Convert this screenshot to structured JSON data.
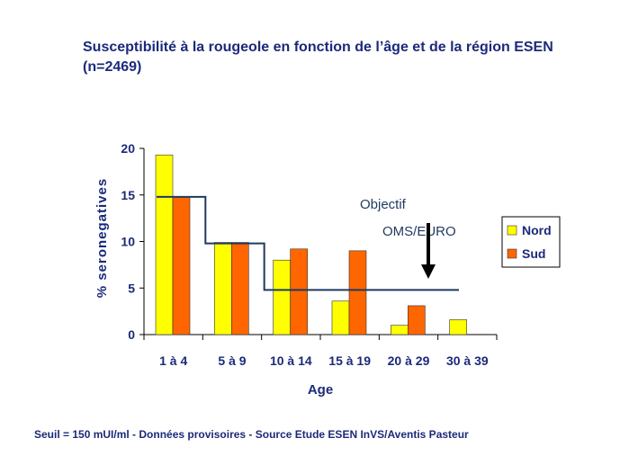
{
  "title": {
    "line1": "Susceptibilité à la rougeole en fonction de l’âge et de la région  ESEN",
    "line2": "(n=2469)"
  },
  "footer": "Seuil = 150 mUI/ml  - Données provisoires - Source  Etude ESEN  InVS/Aventis Pasteur",
  "chart_data": {
    "type": "bar",
    "title": "Susceptibilité à la rougeole en fonction de l’âge et de la région  ESEN (n=2469)",
    "xlabel": "Age",
    "ylabel": "% seronegatives",
    "ylim": [
      0,
      20
    ],
    "yticks": [
      "0",
      "5",
      "10",
      "15",
      "20"
    ],
    "categories": [
      "1 à 4",
      "5 à 9",
      "10 à 14",
      "15 à 19",
      "20 à 29",
      "30 à 39"
    ],
    "series": [
      {
        "name": "Nord",
        "color": "#ffff00",
        "values": [
          19.3,
          9.9,
          8.0,
          3.6,
          1.0,
          1.6
        ]
      },
      {
        "name": "Sud",
        "color": "#ff6600",
        "values": [
          14.8,
          9.9,
          9.2,
          9.0,
          3.1,
          null
        ]
      }
    ],
    "target_line": {
      "label": "Objectif OMS/EURO",
      "label_line1": "Objectif",
      "label_line2": "OMS/EURO",
      "color": "#1f3a5f",
      "steps": [
        {
          "from_category": "1 à 4",
          "to_category": "5 à 9",
          "value": 14.8
        },
        {
          "from_category": "5 à 9",
          "to_category": "10 à 14",
          "value": 9.8
        },
        {
          "from_category": "10 à 14",
          "to_category": "30 à 39",
          "value": 4.8
        }
      ]
    },
    "legend_position": "right"
  }
}
